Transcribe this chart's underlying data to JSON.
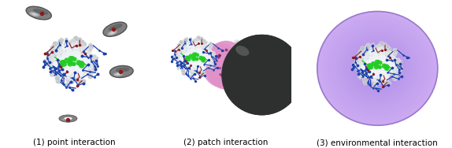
{
  "labels": [
    "(1) point interaction",
    "(2) patch interaction",
    "(3) environmental interaction"
  ],
  "bg_color": "#ffffff",
  "label_fontsize": 7.5,
  "protein_grey": "#c8ccd4",
  "protein_white": "#e8eaee",
  "blue_color": "#1a3faa",
  "red_color": "#8b1a1a",
  "green_color": "#22cc22",
  "ellipsoid_color": "#909090",
  "ellipsoid_edge": "#606060",
  "sphere_dark": "#444444",
  "sphere_light": "#888888",
  "patch_pink": "#e090c0",
  "env_purple": "#b899e8",
  "env_edge": "#a888d8"
}
